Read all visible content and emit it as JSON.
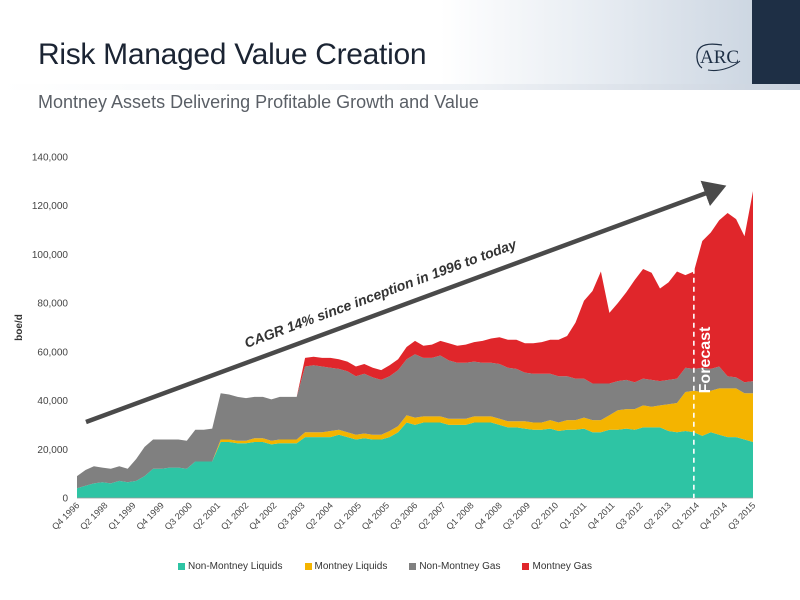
{
  "header": {
    "title": "Risk Managed Value Creation",
    "subtitle": "Montney Assets Delivering Profitable Growth and Value",
    "logo_text": "ARC"
  },
  "colors": {
    "non_montney_liquids": "#2ec4a4",
    "montney_liquids": "#f4b400",
    "non_montney_gas": "#808080",
    "montney_gas": "#e0262b",
    "arrow": "#4a4a4a",
    "header_strip": "#1e2f45"
  },
  "chart_data": {
    "type": "area",
    "stacked": true,
    "ylabel": "boe/d",
    "ylim": [
      0,
      140000
    ],
    "yticks": [
      "0",
      "20,000",
      "40,000",
      "60,000",
      "80,000",
      "100,000",
      "120,000",
      "140,000"
    ],
    "xtick_labels": [
      "Q4 1996",
      "Q2 1998",
      "Q1 1999",
      "Q4 1999",
      "Q3 2000",
      "Q2 2001",
      "Q1 2002",
      "Q4 2002",
      "Q3 2003",
      "Q2 2004",
      "Q1 2005",
      "Q4 2005",
      "Q3 2006",
      "Q2 2007",
      "Q1 2008",
      "Q4 2008",
      "Q3 2009",
      "Q2 2010",
      "Q1 2011",
      "Q4 2011",
      "Q3 2012",
      "Q2 2013",
      "Q1 2014",
      "Q4 2014",
      "Q3 2015"
    ],
    "x_start": "Q4 1996",
    "x_end": "Q4 2015",
    "legend": [
      "Non-Montney Liquids",
      "Montney Liquids",
      "Non-Montney Gas",
      "Montney Gas"
    ],
    "legend_position": "bottom",
    "grid": false,
    "series": [
      {
        "name": "Non-Montney Liquids",
        "values": [
          4000,
          5000,
          6000,
          6500,
          6000,
          7000,
          6500,
          7000,
          9000,
          12000,
          12000,
          12500,
          12500,
          12000,
          15000,
          15000,
          15000,
          23000,
          23000,
          22500,
          22500,
          23000,
          23000,
          22000,
          22500,
          22500,
          22500,
          25000,
          25000,
          25000,
          25000,
          26000,
          25000,
          24000,
          24500,
          24000,
          24000,
          25000,
          27000,
          31000,
          30000,
          31000,
          31000,
          31000,
          30000,
          30000,
          30000,
          31000,
          31000,
          31000,
          30000,
          29000,
          29000,
          28500,
          28000,
          28000,
          28500,
          27500,
          28000,
          28000,
          28500,
          27000,
          27000,
          28000,
          28000,
          28500,
          28000,
          29000,
          29000,
          29000,
          27500,
          27000,
          27500,
          27000,
          25500,
          27000,
          26000,
          25000,
          25000,
          24000,
          23000
        ]
      },
      {
        "name": "Montney Liquids",
        "values": [
          0,
          0,
          0,
          0,
          0,
          0,
          0,
          0,
          0,
          0,
          0,
          0,
          0,
          0,
          0,
          0,
          0,
          1000,
          1000,
          1000,
          1000,
          1500,
          1500,
          1500,
          1500,
          1500,
          1500,
          2000,
          2000,
          2000,
          2500,
          2000,
          2000,
          2000,
          2000,
          2000,
          2000,
          2500,
          2500,
          3000,
          3000,
          2500,
          2500,
          2500,
          2500,
          2500,
          2500,
          2500,
          2500,
          2500,
          2500,
          2500,
          2500,
          3000,
          3000,
          3000,
          3500,
          3500,
          4000,
          4000,
          4500,
          5000,
          5000,
          6000,
          8000,
          8000,
          8500,
          9000,
          8500,
          9000,
          11000,
          12000,
          16000,
          17000,
          18000,
          17000,
          19000,
          20000,
          20000,
          19000,
          20000
        ]
      },
      {
        "name": "Non-Montney Gas",
        "values": [
          5000,
          6500,
          7000,
          6000,
          6000,
          6000,
          5500,
          9000,
          12000,
          12000,
          12000,
          11500,
          11500,
          11500,
          13000,
          13000,
          13500,
          19000,
          18500,
          18000,
          17500,
          17000,
          17000,
          17000,
          17500,
          17500,
          17500,
          27000,
          27500,
          27000,
          26000,
          25000,
          25000,
          24000,
          24500,
          23500,
          22500,
          22500,
          23000,
          23000,
          26000,
          24000,
          24000,
          25000,
          24000,
          23000,
          23000,
          22500,
          22000,
          22000,
          22500,
          22000,
          21500,
          20000,
          20000,
          20000,
          19000,
          19000,
          18000,
          17000,
          16000,
          15000,
          15000,
          13000,
          12000,
          12000,
          11000,
          11000,
          11000,
          10000,
          10000,
          10000,
          10000,
          9000,
          10000,
          9000,
          9000,
          5000,
          4500,
          4500,
          5000
        ]
      },
      {
        "name": "Montney Gas",
        "values": [
          0,
          0,
          0,
          0,
          0,
          0,
          0,
          0,
          0,
          0,
          0,
          0,
          0,
          0,
          0,
          0,
          0,
          0,
          0,
          0,
          0,
          0,
          0,
          0,
          0,
          0,
          0,
          3500,
          3500,
          3500,
          4000,
          4000,
          4000,
          4000,
          4000,
          4000,
          4000,
          4500,
          4500,
          5000,
          5500,
          5000,
          5500,
          6000,
          7000,
          7000,
          7500,
          8000,
          9000,
          10000,
          11000,
          11500,
          12000,
          12000,
          12500,
          13000,
          14000,
          15000,
          16500,
          23000,
          32000,
          38000,
          46000,
          29000,
          32000,
          36000,
          42000,
          45000,
          44000,
          38000,
          40000,
          44000,
          38000,
          40000,
          52000,
          56000,
          60000,
          67000,
          65000,
          60000,
          78000
        ]
      }
    ],
    "annotations": {
      "cagr_text": "CAGR 14% since inception in 1996 to today",
      "forecast_text": "Forecast"
    }
  }
}
